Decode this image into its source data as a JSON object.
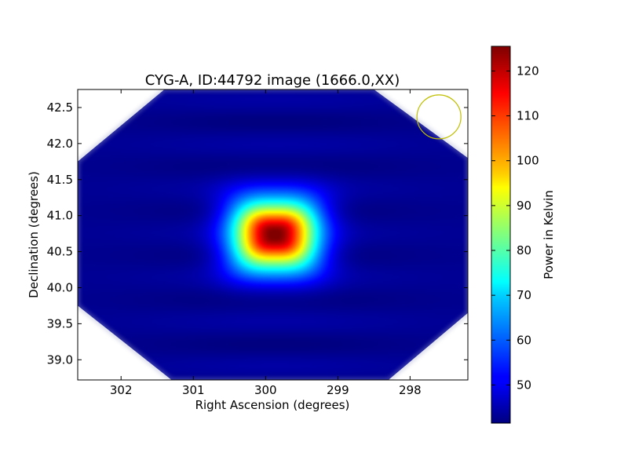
{
  "chart_data": {
    "type": "heatmap",
    "title": "CYG-A, ID:44792 image (1666.0,XX)",
    "xlabel": "Right Ascension (degrees)",
    "ylabel": "Declination (degrees)",
    "xlim": [
      302.6,
      297.2
    ],
    "ylim": [
      38.72,
      42.75
    ],
    "x_ticks": [
      302,
      301,
      300,
      299,
      298
    ],
    "y_ticks": [
      39.0,
      39.5,
      40.0,
      40.5,
      41.0,
      41.5,
      42.0,
      42.5
    ],
    "y_tick_labels": [
      "39.0",
      "39.5",
      "40.0",
      "40.5",
      "41.0",
      "41.5",
      "42.0",
      "42.5"
    ],
    "source": {
      "ra": 299.87,
      "dec": 40.73,
      "peak": 125,
      "background": 43
    },
    "beam_circle": {
      "ra": 297.6,
      "dec": 42.37,
      "color": "#bfbf00"
    },
    "footprint_corners": [
      {
        "ra": 301.4,
        "dec": 42.75
      },
      {
        "ra": 298.5,
        "dec": 42.75
      },
      {
        "ra": 297.2,
        "dec": 41.8
      },
      {
        "ra": 297.2,
        "dec": 39.65
      },
      {
        "ra": 298.3,
        "dec": 38.72
      },
      {
        "ra": 301.3,
        "dec": 38.72
      },
      {
        "ra": 302.6,
        "dec": 39.75
      },
      {
        "ra": 302.6,
        "dec": 41.75
      }
    ],
    "grid": false,
    "colorbar": {
      "label": "Power in Kelvin",
      "min": 41.5,
      "max": 125.5,
      "ticks": [
        50,
        60,
        70,
        80,
        90,
        100,
        110,
        120
      ],
      "colormap": "jet"
    }
  }
}
